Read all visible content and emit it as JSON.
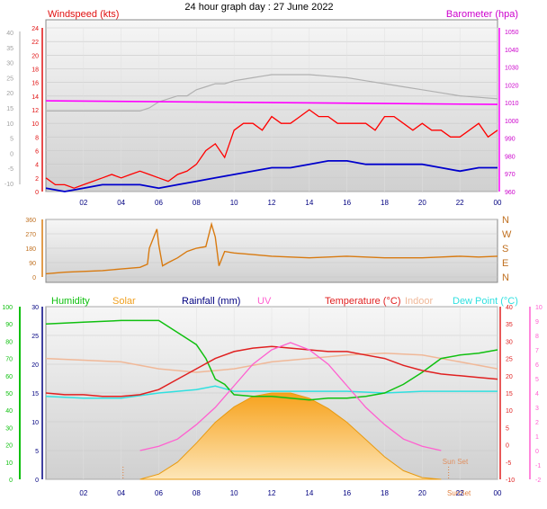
{
  "page_title": "24 hour graph day : 27 June 2022",
  "colors": {
    "windspeed": "#e01010",
    "gust": "#ff0000",
    "wind_avg": "#0000cc",
    "barometer": "#ff00ff",
    "baro_text": "#cc00cc",
    "temp_bg_line": "#b0b0b0",
    "direction": "#d87a10",
    "humidity": "#10c010",
    "solar": "#f0a020",
    "rainfall": "#000080",
    "uv": "#ff60d0",
    "temperature": "#e02020",
    "indoor": "#f0b898",
    "dewpoint": "#30e0e0",
    "panel_bg_top": "#f4f4f4",
    "panel_bg_bottom": "#d4d4d4"
  },
  "x_ticks": [
    "02",
    "04",
    "06",
    "08",
    "10",
    "12",
    "14",
    "16",
    "18",
    "20",
    "22",
    "00"
  ],
  "chart_data": [
    {
      "type": "line",
      "name": "wind-barometer",
      "x_unit": "hours",
      "xlim": [
        0,
        24
      ],
      "left_axis": {
        "title": "Windspeed (kts)",
        "ylim": [
          0,
          24
        ],
        "ticks": [
          0,
          2,
          4,
          6,
          8,
          10,
          12,
          14,
          16,
          18,
          20,
          22,
          24
        ]
      },
      "outer_axis": {
        "ticks": [
          -10,
          -5,
          0,
          5,
          10,
          15,
          20,
          25,
          30,
          35,
          40
        ]
      },
      "right_axis": {
        "title": "Barometer (hpa)",
        "ylim": [
          960,
          1050
        ],
        "ticks": [
          960,
          970,
          980,
          990,
          1000,
          1010,
          1020,
          1030,
          1040,
          1050
        ]
      },
      "series": [
        {
          "axis": "left",
          "x": [
            0,
            0.5,
            1,
            1.5,
            2,
            2.5,
            3,
            3.5,
            4,
            4.5,
            5,
            5.5,
            6,
            6.5,
            7,
            7.5,
            8,
            8.5,
            9,
            9.5,
            10,
            10.5,
            11,
            11.5,
            12,
            12.5,
            13,
            13.5,
            14,
            14.5,
            15,
            15.5,
            16,
            16.5,
            17,
            17.5,
            18,
            18.5,
            19,
            19.5,
            20,
            20.5,
            21,
            21.5,
            22,
            22.5,
            23,
            23.5,
            24
          ],
          "values": [
            2,
            1,
            1,
            0.5,
            1,
            1.5,
            2,
            2.5,
            2,
            2.5,
            3,
            2.5,
            2,
            1.5,
            2.5,
            3,
            4,
            6,
            7,
            5,
            9,
            10,
            10,
            9,
            11,
            10,
            10,
            11,
            12,
            11,
            11,
            10,
            10,
            10,
            10,
            9,
            11,
            11,
            10,
            9,
            10,
            9,
            9,
            8,
            8,
            9,
            10,
            8,
            9
          ]
        },
        {
          "axis": "left",
          "x": [
            0,
            1,
            2,
            3,
            4,
            5,
            6,
            7,
            8,
            9,
            10,
            11,
            12,
            13,
            14,
            15,
            16,
            17,
            18,
            19,
            20,
            21,
            22,
            23,
            24
          ],
          "values": [
            0.5,
            0,
            0.5,
            1,
            1,
            1,
            0.5,
            1,
            1.5,
            2,
            2.5,
            3,
            3.5,
            3.5,
            4,
            4.5,
            4.5,
            4,
            4,
            4,
            4,
            3.5,
            3,
            3.5,
            3.5
          ]
        },
        {
          "axis": "right",
          "x": [
            0,
            6,
            12,
            18,
            24
          ],
          "values": [
            1011,
            1010.5,
            1010,
            1009.5,
            1009
          ]
        },
        {
          "axis": "outer",
          "x": [
            0,
            1,
            2,
            3,
            4,
            5,
            5.5,
            6,
            6.5,
            7,
            7.5,
            8,
            8.5,
            9,
            9.5,
            10,
            10.5,
            11,
            11.5,
            12,
            13,
            14,
            15,
            16,
            17,
            18,
            19,
            20,
            21,
            22,
            23,
            24
          ],
          "values": [
            14,
            14,
            14,
            14,
            14,
            14,
            15,
            17,
            18,
            19,
            19,
            21,
            22,
            23,
            23,
            24,
            24.5,
            25,
            25.5,
            26,
            26,
            26,
            25.5,
            25,
            24,
            23,
            22,
            21,
            20,
            19,
            18.5,
            18
          ]
        }
      ]
    },
    {
      "type": "line",
      "name": "wind-direction",
      "xlim": [
        0,
        24
      ],
      "left_axis": {
        "ylim": [
          0,
          360
        ],
        "ticks": [
          0,
          90,
          180,
          270,
          360
        ]
      },
      "right_axis": {
        "ticks": [
          "N",
          "E",
          "S",
          "W",
          "N"
        ]
      },
      "series": [
        {
          "x": [
            0,
            1,
            2,
            3,
            4,
            5,
            5.4,
            5.5,
            5.9,
            6,
            6.2,
            6.5,
            7,
            7.5,
            8,
            8.5,
            8.8,
            9,
            9.2,
            9.5,
            10,
            11,
            12,
            13,
            14,
            15,
            16,
            17,
            18,
            19,
            20,
            21,
            22,
            23,
            24
          ],
          "values": [
            20,
            30,
            35,
            40,
            50,
            60,
            80,
            180,
            300,
            200,
            70,
            90,
            120,
            160,
            180,
            190,
            330,
            250,
            70,
            160,
            150,
            140,
            130,
            125,
            120,
            125,
            130,
            125,
            120,
            120,
            120,
            125,
            130,
            125,
            130
          ]
        }
      ]
    },
    {
      "type": "area",
      "name": "temp-humidity-solar",
      "xlim": [
        0,
        24
      ],
      "legend": [
        "Humidity",
        "Solar",
        "Rainfall (mm)",
        "UV",
        "Temperature (°C)",
        "Indoor",
        "Dew Point (°C)"
      ],
      "annotations": [
        "Sun Rise",
        "Sun Set",
        "Sun Set"
      ],
      "axes": {
        "humidity": {
          "ylim": [
            0,
            100
          ],
          "ticks": [
            0,
            10,
            20,
            30,
            40,
            50,
            60,
            70,
            80,
            90,
            100
          ]
        },
        "rainfall": {
          "ylim": [
            0,
            30
          ],
          "ticks": [
            0,
            5,
            10,
            15,
            20,
            25,
            30
          ]
        },
        "temperature": {
          "ylim": [
            -10,
            40
          ],
          "ticks": [
            -10,
            -5,
            0,
            5,
            10,
            15,
            20,
            25,
            30,
            35,
            40
          ]
        },
        "uv": {
          "ylim": [
            -2,
            10
          ],
          "ticks": [
            -2,
            -1,
            0,
            1,
            2,
            3,
            4,
            5,
            6,
            7,
            8,
            9,
            10
          ]
        }
      },
      "series": [
        {
          "axis": "humidity",
          "x": [
            0,
            2,
            4,
            5,
            6,
            7,
            8,
            8.5,
            9,
            9.5,
            10,
            11,
            12,
            13,
            14,
            15,
            16,
            17,
            18,
            19,
            20,
            21,
            22,
            23,
            24
          ],
          "values": [
            90,
            91,
            92,
            92,
            92,
            85,
            78,
            70,
            58,
            55,
            49,
            48,
            48,
            47,
            46,
            47,
            47,
            48,
            50,
            55,
            62,
            70,
            72,
            73,
            75
          ]
        },
        {
          "axis": "temperature",
          "x": [
            0,
            1,
            2,
            3,
            4,
            5,
            6,
            7,
            8,
            9,
            10,
            11,
            12,
            13,
            14,
            15,
            16,
            17,
            18,
            19,
            20,
            21,
            22,
            23,
            24
          ],
          "values": [
            15,
            14.5,
            14.5,
            14,
            14,
            14.5,
            16,
            19,
            22,
            25,
            27,
            28,
            28.5,
            28,
            27.5,
            27,
            27,
            26,
            25,
            23,
            21.5,
            20.5,
            20,
            19.5,
            19
          ]
        },
        {
          "axis": "temperature",
          "x": [
            0,
            2,
            4,
            6,
            8,
            10,
            12,
            14,
            16,
            18,
            20,
            22,
            24
          ],
          "values": [
            25,
            24.5,
            24,
            22,
            21,
            22,
            24,
            25,
            26,
            26.5,
            26,
            24,
            22
          ]
        },
        {
          "axis": "temperature",
          "x": [
            0,
            2,
            4,
            6,
            8,
            9,
            10,
            12,
            14,
            16,
            18,
            20,
            22,
            24
          ],
          "values": [
            14,
            13.5,
            13.5,
            15,
            16,
            17,
            15.5,
            15.5,
            15.5,
            15.5,
            15,
            15.5,
            15.5,
            15.5
          ]
        },
        {
          "axis": "uv",
          "x": [
            5,
            6,
            7,
            8,
            9,
            10,
            11,
            12,
            13,
            14,
            15,
            16,
            17,
            18,
            19,
            20,
            21
          ],
          "values": [
            0,
            0.3,
            0.8,
            1.8,
            3,
            4.5,
            6,
            7,
            7.5,
            7,
            6,
            4.5,
            3,
            1.8,
            0.8,
            0.3,
            0
          ]
        },
        {
          "axis": "humidity",
          "x": [
            5,
            6,
            7,
            8,
            9,
            10,
            11,
            12,
            13,
            14,
            15,
            16,
            17,
            18,
            19,
            20,
            21
          ],
          "values": [
            0,
            3,
            10,
            21,
            33,
            42,
            48,
            50,
            50,
            47,
            41,
            33,
            23,
            13,
            5,
            1,
            0
          ]
        }
      ]
    }
  ],
  "sun_rise_label": "Sun Rise",
  "sun_set_label": "Sun Set"
}
